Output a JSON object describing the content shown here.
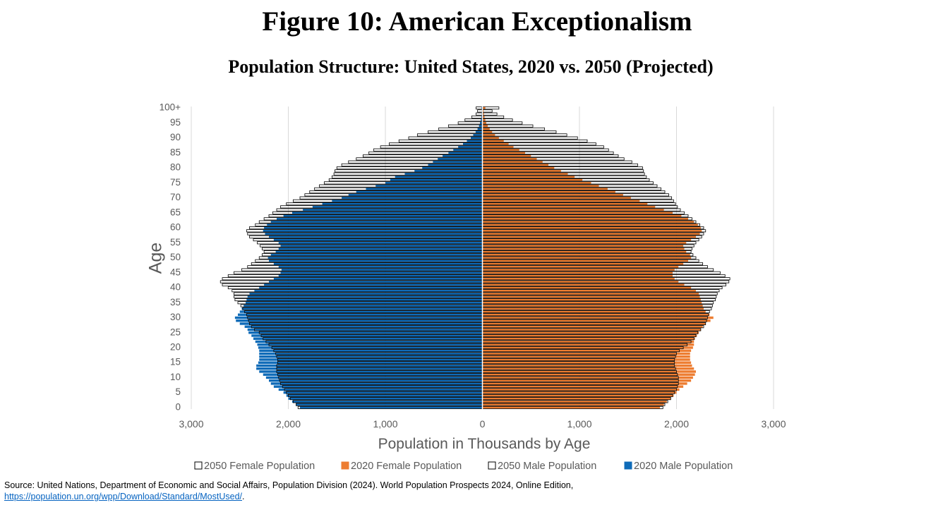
{
  "figure": {
    "title": "Figure 10: American Exceptionalism",
    "subtitle": "Population Structure: United States, 2020 vs. 2050 (Projected)"
  },
  "source": {
    "text": "Source: United Nations, Department of Economic and Social Affairs, Population Division (2024). World Population Prospects 2024, Online Edition,",
    "link": "https://population.un.org/wpp/Download/Standard/MostUsed/",
    "link_suffix": "."
  },
  "colors": {
    "male_2020": "#0f6bb8",
    "female_2020": "#ed7d31",
    "outline_2050": "#000000",
    "axis_text": "#595959",
    "grid": "#d9d9d9"
  },
  "chart_data": {
    "type": "bar",
    "orientation": "horizontal-pyramid",
    "xlabel": "Population in Thousands by Age",
    "ylabel": "Age",
    "xlim": [
      -3000,
      3000
    ],
    "x_ticks": [
      -3000,
      -2000,
      -1000,
      0,
      1000,
      2000,
      3000
    ],
    "x_tick_labels": [
      "3,000",
      "2,000",
      "1,000",
      "0",
      "1,000",
      "2,000",
      "3,000"
    ],
    "y_tick_labels": [
      "0",
      "5",
      "10",
      "15",
      "20",
      "25",
      "30",
      "35",
      "40",
      "45",
      "50",
      "55",
      "60",
      "65",
      "70",
      "75",
      "80",
      "85",
      "90",
      "95",
      "100+"
    ],
    "legend": [
      "2050 Female Population",
      "2020 Female Population",
      "2050 Male Population",
      "2020 Male Population"
    ],
    "legend_position": "bottom",
    "grid": true,
    "series": [
      {
        "name": "2020 Male Population",
        "values": [
          1880,
          1920,
          1960,
          2000,
          2020,
          2050,
          2100,
          2150,
          2180,
          2200,
          2230,
          2260,
          2300,
          2330,
          2330,
          2310,
          2300,
          2300,
          2300,
          2300,
          2310,
          2320,
          2340,
          2360,
          2380,
          2410,
          2420,
          2450,
          2500,
          2540,
          2550,
          2520,
          2500,
          2480,
          2460,
          2440,
          2430,
          2420,
          2400,
          2350,
          2300,
          2250,
          2200,
          2150,
          2100,
          2080,
          2070,
          2100,
          2150,
          2200,
          2210,
          2180,
          2130,
          2100,
          2080,
          2100,
          2150,
          2200,
          2240,
          2260,
          2250,
          2220,
          2180,
          2120,
          2050,
          1960,
          1850,
          1750,
          1650,
          1550,
          1450,
          1380,
          1300,
          1200,
          1100,
          1000,
          950,
          900,
          800,
          700,
          620,
          560,
          510,
          460,
          410,
          350,
          300,
          250,
          200,
          160,
          120,
          95,
          70,
          50,
          35,
          25,
          17,
          12,
          8,
          6,
          10
        ]
      },
      {
        "name": "2020 Female Population",
        "values": [
          1830,
          1870,
          1900,
          1940,
          1970,
          2000,
          2030,
          2070,
          2110,
          2150,
          2170,
          2190,
          2200,
          2180,
          2160,
          2150,
          2140,
          2140,
          2140,
          2150,
          2170,
          2180,
          2180,
          2190,
          2210,
          2230,
          2250,
          2270,
          2300,
          2350,
          2380,
          2340,
          2300,
          2280,
          2270,
          2260,
          2250,
          2240,
          2230,
          2200,
          2150,
          2080,
          2020,
          1980,
          1960,
          1960,
          1980,
          2020,
          2070,
          2120,
          2150,
          2140,
          2100,
          2080,
          2070,
          2100,
          2150,
          2200,
          2240,
          2260,
          2250,
          2220,
          2180,
          2120,
          2050,
          1960,
          1870,
          1780,
          1700,
          1620,
          1530,
          1450,
          1370,
          1290,
          1200,
          1120,
          1030,
          950,
          880,
          810,
          740,
          680,
          620,
          560,
          500,
          440,
          380,
          320,
          270,
          220,
          170,
          130,
          100,
          75,
          55,
          40,
          30,
          22,
          16,
          12,
          30
        ]
      },
      {
        "name": "2050 Male Population",
        "values": [
          1900,
          1920,
          1950,
          1980,
          2000,
          2020,
          2040,
          2060,
          2080,
          2090,
          2100,
          2110,
          2120,
          2120,
          2120,
          2110,
          2110,
          2120,
          2130,
          2150,
          2170,
          2200,
          2230,
          2260,
          2280,
          2300,
          2350,
          2380,
          2400,
          2410,
          2420,
          2430,
          2450,
          2470,
          2490,
          2520,
          2550,
          2560,
          2560,
          2580,
          2620,
          2680,
          2700,
          2680,
          2620,
          2560,
          2480,
          2420,
          2380,
          2340,
          2300,
          2270,
          2250,
          2270,
          2290,
          2320,
          2360,
          2400,
          2420,
          2430,
          2400,
          2340,
          2300,
          2250,
          2200,
          2160,
          2120,
          2080,
          2020,
          1950,
          1880,
          1830,
          1780,
          1730,
          1680,
          1630,
          1580,
          1550,
          1530,
          1520,
          1500,
          1450,
          1380,
          1300,
          1230,
          1170,
          1120,
          1050,
          960,
          860,
          760,
          670,
          560,
          450,
          350,
          250,
          180,
          110,
          65,
          50,
          65
        ]
      },
      {
        "name": "2050 Female Population",
        "values": [
          1860,
          1880,
          1910,
          1940,
          1960,
          1980,
          2000,
          2010,
          2020,
          2020,
          2020,
          2010,
          2000,
          1990,
          1980,
          1980,
          1980,
          1990,
          2000,
          2030,
          2070,
          2110,
          2150,
          2180,
          2200,
          2220,
          2250,
          2280,
          2300,
          2310,
          2320,
          2330,
          2340,
          2360,
          2370,
          2380,
          2400,
          2410,
          2420,
          2440,
          2470,
          2510,
          2540,
          2550,
          2500,
          2450,
          2380,
          2320,
          2270,
          2230,
          2200,
          2170,
          2150,
          2160,
          2180,
          2200,
          2230,
          2260,
          2280,
          2300,
          2280,
          2240,
          2200,
          2160,
          2120,
          2080,
          2040,
          2010,
          1990,
          1970,
          1950,
          1920,
          1880,
          1840,
          1800,
          1760,
          1720,
          1690,
          1670,
          1660,
          1650,
          1600,
          1540,
          1460,
          1400,
          1350,
          1300,
          1250,
          1170,
          1080,
          980,
          870,
          760,
          640,
          520,
          410,
          310,
          220,
          150,
          100,
          170
        ]
      }
    ]
  }
}
